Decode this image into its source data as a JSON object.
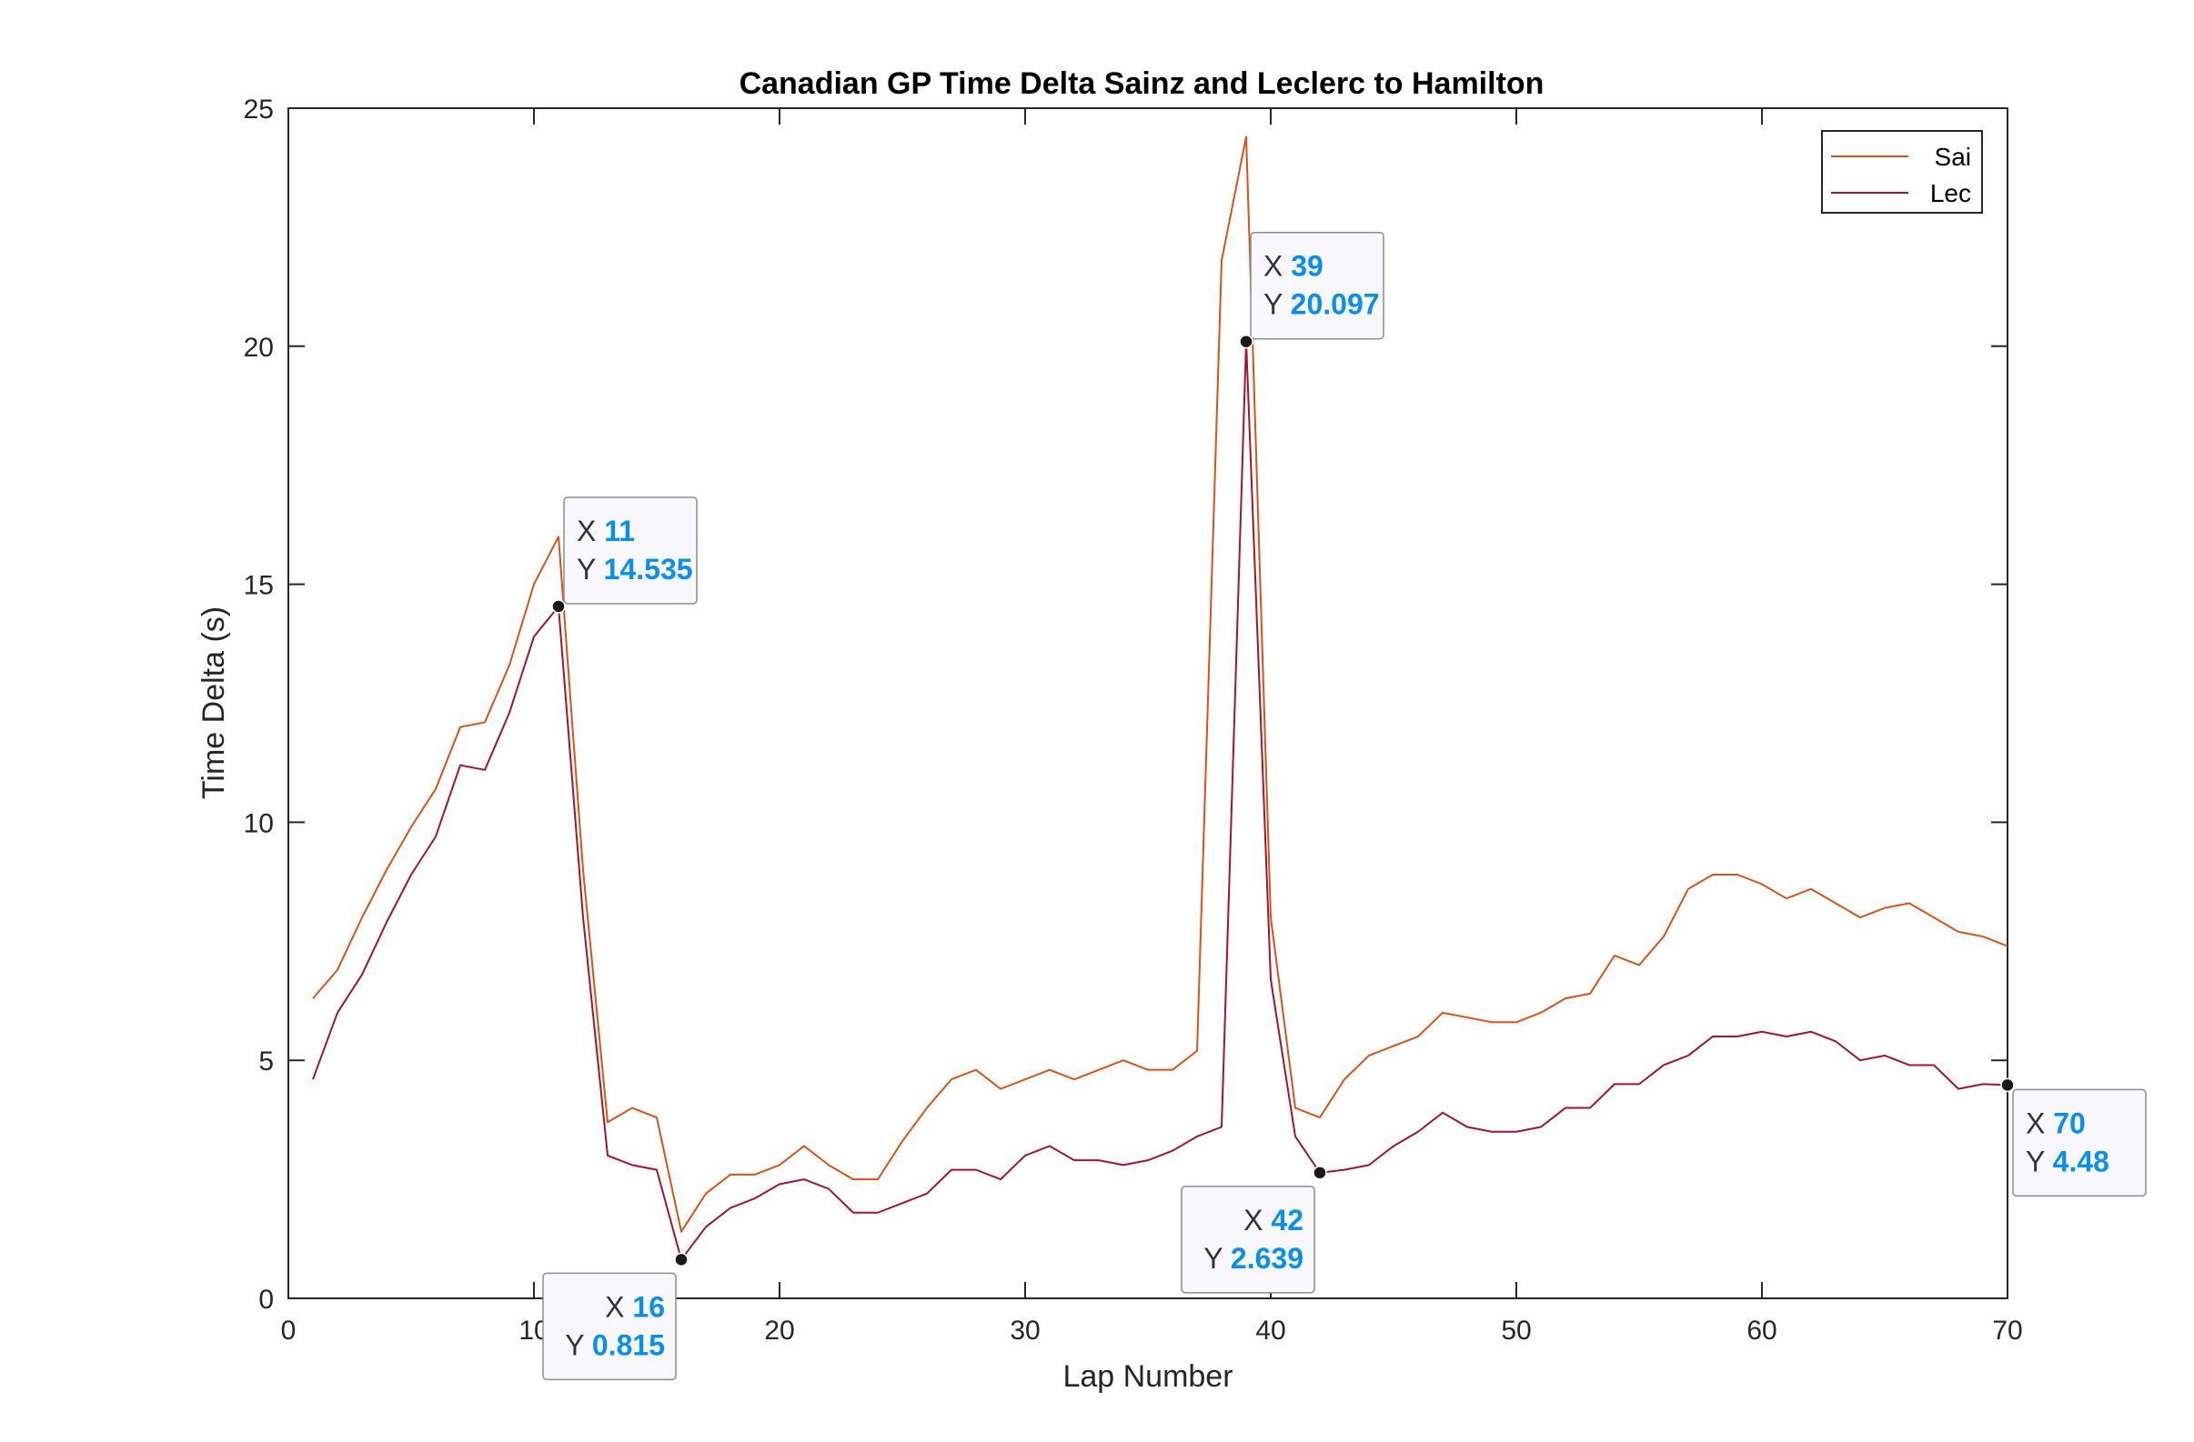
{
  "chart_data": {
    "type": "line",
    "title": "Canadian GP Time Delta Sainz and Leclerc to Hamilton",
    "xlabel": "Lap Number",
    "ylabel": "Time Delta (s)",
    "xlim": [
      0,
      70
    ],
    "ylim": [
      0,
      25
    ],
    "xticks": [
      0,
      10,
      20,
      30,
      40,
      50,
      60,
      70
    ],
    "yticks": [
      0,
      5,
      10,
      15,
      20,
      25
    ],
    "grid": false,
    "legend_position": "top-right",
    "series": [
      {
        "name": "Sai",
        "color": "#d95319",
        "x": [
          1,
          2,
          3,
          4,
          5,
          6,
          7,
          8,
          9,
          10,
          11,
          12,
          13,
          14,
          15,
          16,
          17,
          18,
          19,
          20,
          21,
          22,
          23,
          24,
          25,
          26,
          27,
          28,
          29,
          30,
          31,
          32,
          33,
          34,
          35,
          36,
          37,
          38,
          39,
          40,
          41,
          42,
          43,
          44,
          45,
          46,
          47,
          48,
          49,
          50,
          51,
          52,
          53,
          54,
          55,
          56,
          57,
          58,
          59,
          60,
          61,
          62,
          63,
          64,
          65,
          66,
          67,
          68,
          69,
          70
        ],
        "y": [
          6.3,
          6.9,
          8.0,
          9.0,
          9.9,
          10.7,
          12.0,
          12.1,
          13.3,
          15.0,
          16.0,
          9.0,
          3.7,
          4.0,
          3.8,
          1.4,
          2.2,
          2.6,
          2.6,
          2.8,
          3.2,
          2.8,
          2.5,
          2.5,
          3.3,
          4.0,
          4.6,
          4.8,
          4.4,
          4.6,
          4.8,
          4.6,
          4.8,
          5.0,
          4.8,
          4.8,
          5.2,
          21.8,
          24.4,
          8.0,
          4.0,
          3.8,
          4.6,
          5.1,
          5.3,
          5.5,
          6.0,
          5.9,
          5.8,
          5.8,
          6.0,
          6.3,
          6.4,
          7.2,
          7.0,
          7.6,
          8.6,
          8.9,
          8.9,
          8.7,
          8.4,
          8.6,
          8.3,
          8.0,
          8.2,
          8.3,
          8.0,
          7.7,
          7.6,
          7.4
        ]
      },
      {
        "name": "Lec",
        "color": "#a2142f",
        "x": [
          1,
          2,
          3,
          4,
          5,
          6,
          7,
          8,
          9,
          10,
          11,
          12,
          13,
          14,
          15,
          16,
          17,
          18,
          19,
          20,
          21,
          22,
          23,
          24,
          25,
          26,
          27,
          28,
          29,
          30,
          31,
          32,
          33,
          34,
          35,
          36,
          37,
          38,
          39,
          40,
          41,
          42,
          43,
          44,
          45,
          46,
          47,
          48,
          49,
          50,
          51,
          52,
          53,
          54,
          55,
          56,
          57,
          58,
          59,
          60,
          61,
          62,
          63,
          64,
          65,
          66,
          67,
          68,
          69,
          70
        ],
        "y": [
          4.6,
          6.0,
          6.8,
          7.9,
          8.9,
          9.7,
          11.2,
          11.1,
          12.3,
          13.9,
          14.535,
          8.0,
          3.0,
          2.8,
          2.7,
          0.815,
          1.5,
          1.9,
          2.1,
          2.4,
          2.5,
          2.3,
          1.8,
          1.8,
          2.0,
          2.2,
          2.7,
          2.7,
          2.5,
          3.0,
          3.2,
          2.9,
          2.9,
          2.8,
          2.9,
          3.1,
          3.4,
          3.6,
          20.097,
          6.7,
          3.4,
          2.639,
          2.7,
          2.8,
          3.2,
          3.5,
          3.9,
          3.6,
          3.5,
          3.5,
          3.6,
          4.0,
          4.0,
          4.5,
          4.5,
          4.9,
          5.1,
          5.5,
          5.5,
          5.6,
          5.5,
          5.6,
          5.4,
          5.0,
          5.1,
          4.9,
          4.9,
          4.4,
          4.5,
          4.48
        ]
      }
    ],
    "datatips": [
      {
        "x": "11",
        "y": "14.535",
        "x_label": "X",
        "y_label": "Y"
      },
      {
        "x": "16",
        "y": "0.815",
        "x_label": "X",
        "y_label": "Y"
      },
      {
        "x": "39",
        "y": "20.097",
        "x_label": "X",
        "y_label": "Y"
      },
      {
        "x": "42",
        "y": "2.639",
        "x_label": "X",
        "y_label": "Y"
      },
      {
        "x": "70",
        "y": "4.48",
        "x_label": "X",
        "y_label": "Y"
      }
    ]
  }
}
